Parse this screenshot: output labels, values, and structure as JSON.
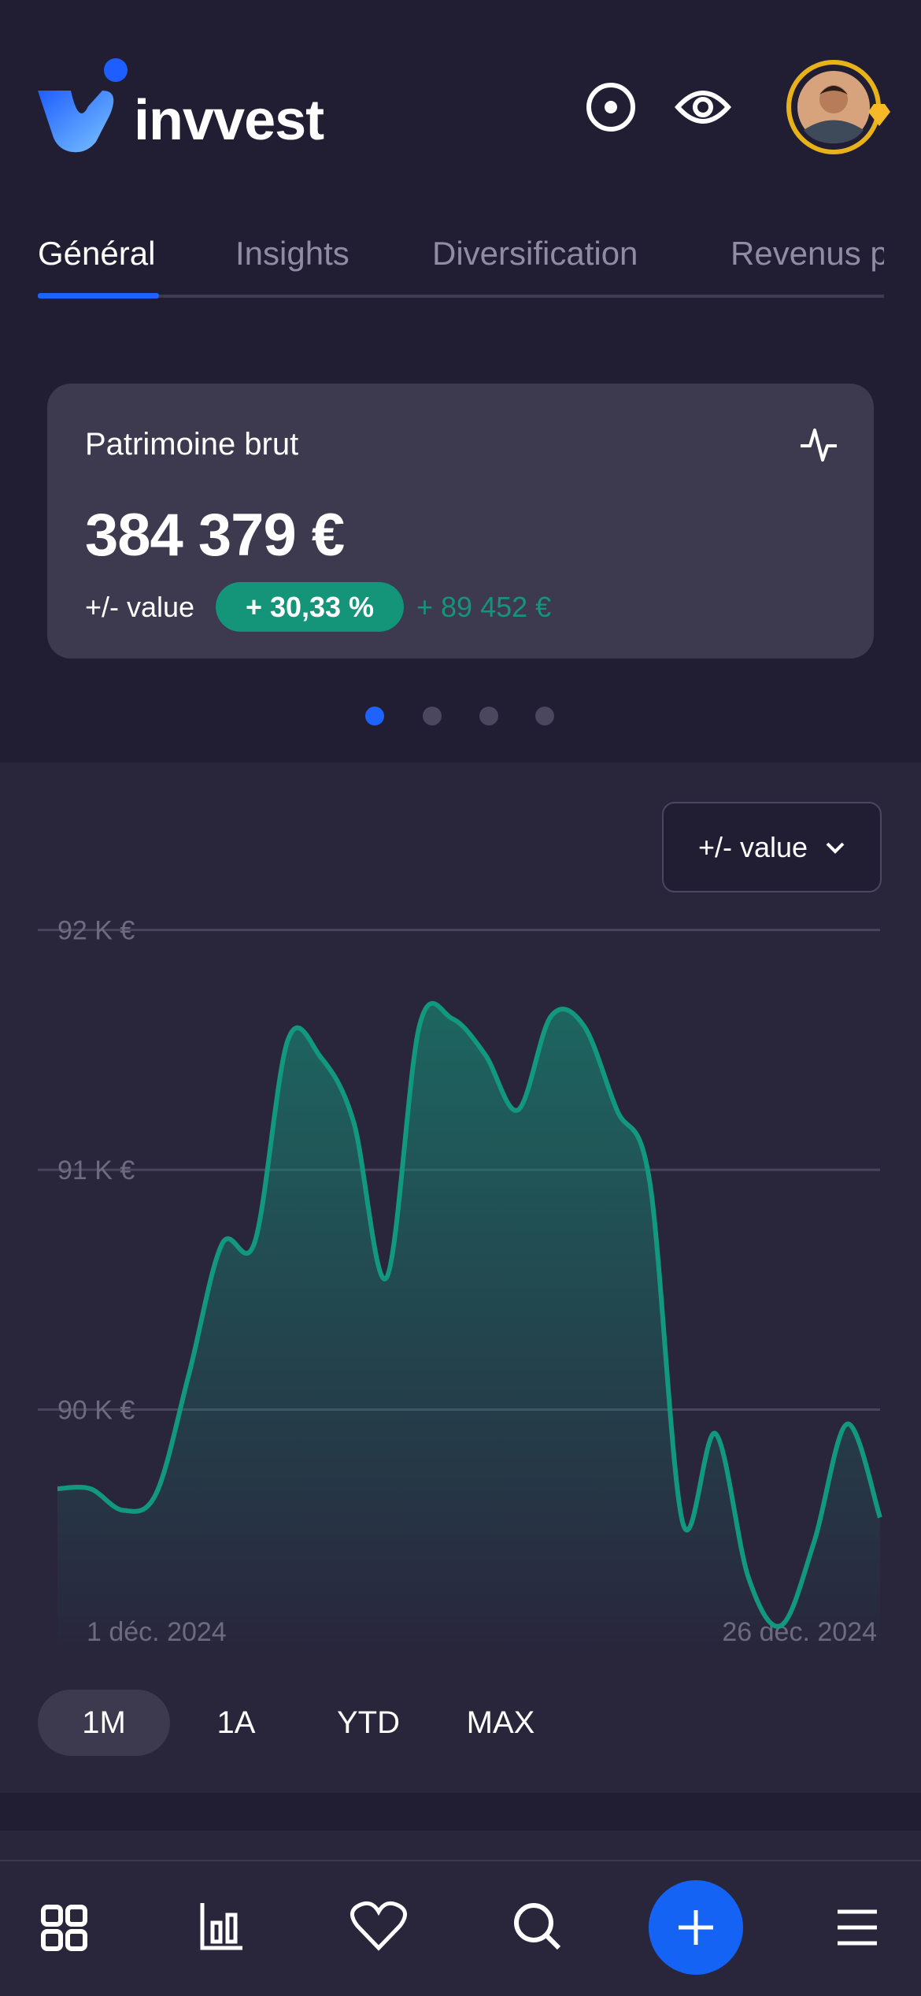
{
  "header": {
    "brand": "invvest"
  },
  "tabs": [
    "Général",
    "Insights",
    "Diversification",
    "Revenus p"
  ],
  "card": {
    "title": "Patrimoine brut",
    "value": "384 379 €",
    "change_label": "+/- value",
    "change_percent": "+ 30,33 %",
    "change_amount": "+ 89 452 €"
  },
  "chart": {
    "type": "line",
    "dropdown": "+/- value",
    "categories": [
      "1 déc. 2024",
      null,
      null,
      null,
      null,
      null,
      null,
      null,
      null,
      null,
      null,
      null,
      null,
      null,
      null,
      null,
      null,
      null,
      null,
      null,
      null,
      null,
      null,
      null,
      null,
      "26 déc. 2024"
    ],
    "series": [
      {
        "color": "#12997d",
        "values": [
          89670,
          89670,
          89580,
          89650,
          90150,
          90690,
          90700,
          91540,
          91470,
          91200,
          90550,
          91600,
          91630,
          91480,
          91250,
          91640,
          91600,
          91250,
          90950,
          89530,
          89900,
          89300,
          89100,
          89450,
          89940,
          89550
        ]
      }
    ],
    "ylim": [
      89000,
      92150
    ],
    "yticks": [
      {
        "value": 90000,
        "label": "90 K €"
      },
      {
        "value": 91000,
        "label": "91 K €"
      },
      {
        "value": 92000,
        "label": "92 K €"
      }
    ],
    "grid": true
  },
  "ranges": [
    "1M",
    "1A",
    "YTD",
    "MAX"
  ]
}
